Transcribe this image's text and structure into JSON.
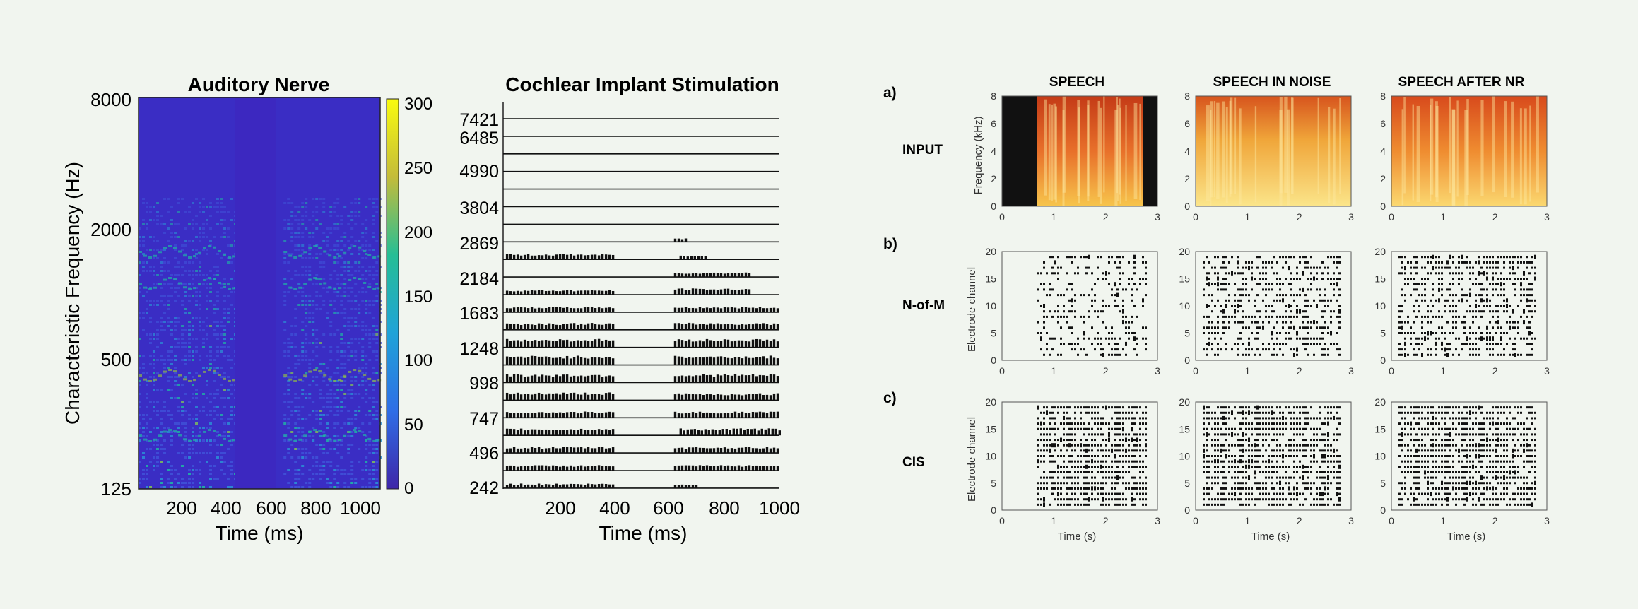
{
  "figure_left": {
    "auditory_nerve": {
      "title": "Auditory Nerve",
      "ylabel": "Characteristic Frequency (Hz)",
      "xlabel": "Time (ms)",
      "y_ticks": [
        "8000",
        "2000",
        "500",
        "125"
      ],
      "x_ticks": [
        "200",
        "400",
        "600",
        "800",
        "1000"
      ],
      "colorbar_ticks": [
        "300",
        "250",
        "200",
        "150",
        "100",
        "50",
        "0"
      ],
      "colormap": "parula",
      "colors": {
        "low": "#3a2dc4",
        "mid": "#1fb5a5",
        "high": "#f9fb0e"
      }
    },
    "ci_stimulation": {
      "title": "Cochlear Implant Stimulation",
      "xlabel": "Time (ms)",
      "channel_labels": [
        "7421",
        "6485",
        "4990",
        "3804",
        "2869",
        "2184",
        "1683",
        "1248",
        "998",
        "747",
        "496",
        "242"
      ],
      "x_ticks": [
        "200",
        "400",
        "600",
        "800",
        "1000"
      ]
    }
  },
  "figure_right": {
    "columns": [
      "SPEECH",
      "SPEECH IN NOISE",
      "SPEECH AFTER NR"
    ],
    "rows": [
      {
        "letter": "a)",
        "label": "INPUT",
        "ylabel": "Frequency (kHz)",
        "y_ticks": [
          "8",
          "6",
          "4",
          "2",
          "0"
        ]
      },
      {
        "letter": "b)",
        "label": "N-of-M",
        "ylabel": "Electrode channel",
        "y_ticks": [
          "20",
          "15",
          "10",
          "5",
          "0"
        ]
      },
      {
        "letter": "c)",
        "label": "CIS",
        "ylabel": "Electrode channel",
        "y_ticks": [
          "20",
          "15",
          "10",
          "5",
          "0"
        ]
      }
    ],
    "x_ticks": [
      "0",
      "1",
      "2",
      "3"
    ],
    "xlabel": "Time (s)"
  },
  "chart_data": [
    {
      "type": "heatmap",
      "title": "Auditory Nerve",
      "xlabel": "Time (ms)",
      "ylabel": "Characteristic Frequency (Hz)",
      "xlim": [
        0,
        1000
      ],
      "y_scale": "log",
      "ylim": [
        125,
        8000
      ],
      "colorbar_range": [
        0,
        300
      ],
      "series": [
        {
          "x": [
            0,
            400
          ],
          "ylim": [
            125,
            3000
          ]
        },
        {
          "x": [
            600,
            1000
          ],
          "ylim": [
            125,
            3500
          ]
        }
      ]
    },
    {
      "type": "bar",
      "title": "Cochlear Implant Stimulation",
      "xlabel": "Time (ms)",
      "xlim": [
        0,
        1000
      ],
      "categories": [
        "7421",
        "6485",
        "4990",
        "3804",
        "2869",
        "2184",
        "1683",
        "1248",
        "998",
        "747",
        "496",
        "242"
      ]
    },
    {
      "type": "heatmap",
      "ylabel": "Frequency (kHz)",
      "xlabel": "",
      "xlim": [
        0,
        3
      ],
      "ylim": [
        0,
        8
      ],
      "categories": [
        "SPEECH",
        "SPEECH IN NOISE",
        "SPEECH AFTER NR"
      ]
    },
    {
      "type": "scatter",
      "ylabel": "Electrode channel",
      "xlim": [
        0,
        3
      ],
      "ylim": [
        0,
        20
      ],
      "categories": [
        "SPEECH",
        "SPEECH IN NOISE",
        "SPEECH AFTER NR"
      ]
    },
    {
      "type": "scatter",
      "ylabel": "Electrode channel",
      "xlabel": "Time (s)",
      "xlim": [
        0,
        3
      ],
      "ylim": [
        0,
        20
      ],
      "categories": [
        "SPEECH",
        "SPEECH IN NOISE",
        "SPEECH AFTER NR"
      ]
    }
  ]
}
